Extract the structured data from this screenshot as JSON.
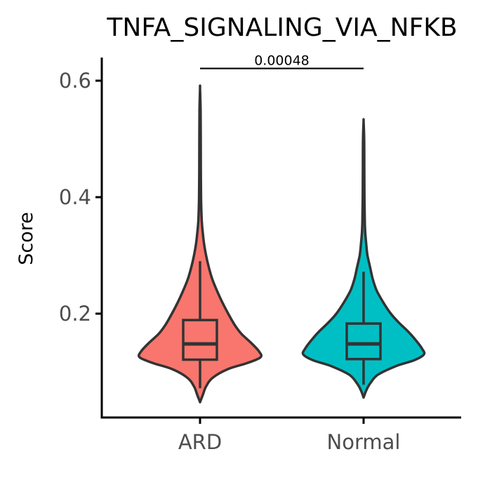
{
  "chart_data": {
    "type": "violin",
    "title": "TNFA_SIGNALING_VIA_NFKB",
    "xlabel": "",
    "ylabel": "Score",
    "categories": [
      "ARD",
      "Normal"
    ],
    "ylim": [
      0.045,
      0.64
    ],
    "y_ticks": [
      0.2,
      0.4,
      0.6
    ],
    "y_tick_labels": [
      "0.2",
      "0.4",
      "0.6"
    ],
    "grid": false,
    "legend": "none",
    "series": [
      {
        "category": "ARD",
        "color": "#F8766D",
        "min": 0.048,
        "max": 0.587,
        "box": {
          "whisker_low": 0.072,
          "q1": 0.121,
          "median": 0.148,
          "q3": 0.189,
          "whisker_high": 0.29
        },
        "density": [
          [
            0.048,
            0.0
          ],
          [
            0.06,
            0.04
          ],
          [
            0.075,
            0.09
          ],
          [
            0.09,
            0.19
          ],
          [
            0.105,
            0.42
          ],
          [
            0.115,
            0.7
          ],
          [
            0.125,
            0.9
          ],
          [
            0.135,
            0.88
          ],
          [
            0.15,
            0.76
          ],
          [
            0.165,
            0.62
          ],
          [
            0.18,
            0.52
          ],
          [
            0.2,
            0.42
          ],
          [
            0.22,
            0.33
          ],
          [
            0.24,
            0.25
          ],
          [
            0.26,
            0.18
          ],
          [
            0.28,
            0.13
          ],
          [
            0.3,
            0.09
          ],
          [
            0.32,
            0.06
          ],
          [
            0.34,
            0.04
          ],
          [
            0.36,
            0.025
          ],
          [
            0.4,
            0.015
          ],
          [
            0.45,
            0.012
          ],
          [
            0.5,
            0.01
          ],
          [
            0.55,
            0.008
          ],
          [
            0.587,
            0.0
          ]
        ]
      },
      {
        "category": "Normal",
        "color": "#00BFC4",
        "min": 0.056,
        "max": 0.53,
        "box": {
          "whisker_low": 0.078,
          "q1": 0.122,
          "median": 0.148,
          "q3": 0.183,
          "whisker_high": 0.272
        },
        "density": [
          [
            0.056,
            0.0
          ],
          [
            0.068,
            0.04
          ],
          [
            0.08,
            0.1
          ],
          [
            0.095,
            0.22
          ],
          [
            0.11,
            0.5
          ],
          [
            0.12,
            0.78
          ],
          [
            0.13,
            0.93
          ],
          [
            0.14,
            0.9
          ],
          [
            0.155,
            0.8
          ],
          [
            0.17,
            0.68
          ],
          [
            0.185,
            0.54
          ],
          [
            0.2,
            0.42
          ],
          [
            0.22,
            0.3
          ],
          [
            0.24,
            0.2
          ],
          [
            0.26,
            0.14
          ],
          [
            0.28,
            0.1
          ],
          [
            0.3,
            0.06
          ],
          [
            0.32,
            0.04
          ],
          [
            0.34,
            0.025
          ],
          [
            0.36,
            0.018
          ],
          [
            0.4,
            0.013
          ],
          [
            0.45,
            0.011
          ],
          [
            0.5,
            0.009
          ],
          [
            0.53,
            0.0
          ]
        ]
      }
    ],
    "annotations": [
      {
        "type": "significance-bracket",
        "between": [
          "ARD",
          "Normal"
        ],
        "y": 0.621,
        "label": "0.00048"
      }
    ]
  }
}
